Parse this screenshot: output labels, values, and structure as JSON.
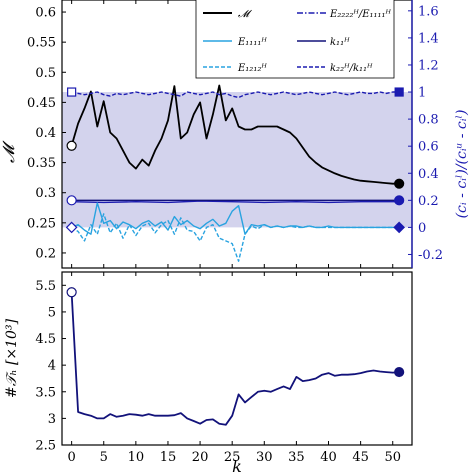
{
  "chart_data": [
    {
      "type": "line",
      "ylabel": "𝓜",
      "ylabel_right": "(cᵢ - cᵢˡ)/(cᵢᵘ - cᵢˡ)",
      "xlim": [
        -1.5,
        53
      ],
      "ylim": [
        0.175,
        0.62
      ],
      "ylim_right": [
        -0.3,
        1.68
      ],
      "xticks": [
        "0",
        "5",
        "10",
        "15",
        "20",
        "25",
        "30",
        "35",
        "40",
        "45",
        "50"
      ],
      "yticks": [
        "0.2",
        "0.25",
        "0.3",
        "0.35",
        "0.4",
        "0.45",
        "0.5",
        "0.55",
        "0.6"
      ],
      "yticks_right": [
        "-0.2",
        "0",
        "0.2",
        "0.4",
        "0.6",
        "0.8",
        "1",
        "1.2",
        "1.4",
        "1.6"
      ],
      "shaded_band": [
        0,
        1
      ],
      "legend_position": "top-right",
      "series": [
        {
          "name": "𝓜",
          "axis": "left",
          "color": "#000000",
          "x": [
            0,
            1,
            2,
            3,
            4,
            5,
            6,
            7,
            8,
            9,
            10,
            11,
            12,
            13,
            14,
            15,
            16,
            17,
            18,
            19,
            20,
            21,
            22,
            23,
            24,
            25,
            26,
            27,
            28,
            29,
            30,
            31,
            32,
            33,
            34,
            35,
            36,
            37,
            38,
            39,
            40,
            41,
            42,
            43,
            44,
            45,
            46,
            47,
            48,
            49,
            50,
            51
          ],
          "values": [
            0.378,
            0.415,
            0.44,
            0.468,
            0.41,
            0.452,
            0.4,
            0.39,
            0.37,
            0.35,
            0.34,
            0.355,
            0.345,
            0.37,
            0.39,
            0.42,
            0.477,
            0.39,
            0.4,
            0.43,
            0.45,
            0.39,
            0.43,
            0.478,
            0.42,
            0.44,
            0.41,
            0.405,
            0.405,
            0.41,
            0.41,
            0.41,
            0.41,
            0.405,
            0.4,
            0.39,
            0.375,
            0.36,
            0.35,
            0.342,
            0.337,
            0.332,
            0.328,
            0.325,
            0.322,
            0.32,
            0.319,
            0.318,
            0.317,
            0.316,
            0.315,
            0.315
          ]
        },
        {
          "name": "E₂₂₂₂ᴴ/E₁₁₁₁ᴴ",
          "axis": "right",
          "color": "#1b1bb0",
          "x": [
            0,
            5,
            10,
            15,
            20,
            25,
            30,
            35,
            40,
            45,
            51
          ],
          "values": [
            0.19,
            0.185,
            0.19,
            0.185,
            0.195,
            0.19,
            0.185,
            0.19,
            0.185,
            0.19,
            0.19
          ]
        },
        {
          "name": "E₁₁₁₁ᴴ",
          "axis": "right",
          "color": "#29a3e0",
          "x": [
            0,
            1,
            2,
            3,
            4,
            5,
            6,
            7,
            8,
            9,
            10,
            11,
            12,
            13,
            14,
            15,
            16,
            17,
            18,
            19,
            20,
            21,
            22,
            23,
            24,
            25,
            26,
            27,
            28,
            29,
            30,
            31,
            32,
            33,
            34,
            35,
            36,
            37,
            38,
            39,
            40,
            41,
            42,
            43,
            44,
            45,
            46,
            47,
            48,
            49,
            50,
            51
          ],
          "values": [
            0,
            0.02,
            -0.02,
            -0.05,
            0.18,
            0.03,
            0.05,
            -0.01,
            0.04,
            0.02,
            -0.01,
            0.03,
            0.05,
            0.01,
            0.04,
            -0.02,
            0.08,
            0.02,
            0.05,
            0.01,
            -0.01,
            0.03,
            0.06,
            0.01,
            0.03,
            0.12,
            0.16,
            -0.05,
            0.02,
            0.01,
            0.02,
            0,
            0.01,
            0,
            0.01,
            0.01,
            0,
            0.01,
            0,
            0,
            0.01,
            0,
            0,
            0,
            0,
            0,
            0,
            0,
            0,
            0,
            0,
            0
          ]
        },
        {
          "name": "k₁₁ᴴ",
          "axis": "right",
          "color": "#12127a",
          "x": [
            0,
            51
          ],
          "values": [
            0.2,
            0.2
          ]
        },
        {
          "name": "E₁₂₁₂ᴴ",
          "axis": "right",
          "color": "#29a3e0",
          "dash": true,
          "x": [
            0,
            1,
            2,
            3,
            4,
            5,
            6,
            7,
            8,
            9,
            10,
            11,
            12,
            13,
            14,
            15,
            16,
            17,
            18,
            19,
            20,
            21,
            22,
            23,
            24,
            25,
            26,
            27,
            28,
            29,
            30,
            31,
            32,
            33,
            34,
            35,
            36,
            37,
            38,
            39,
            40,
            41,
            42,
            43,
            44,
            45,
            46,
            47,
            48,
            49,
            50,
            51
          ],
          "values": [
            0,
            -0.03,
            -0.1,
            0.02,
            -0.05,
            0.1,
            -0.04,
            0.03,
            -0.08,
            0.02,
            -0.06,
            0.01,
            0.03,
            -0.04,
            0.02,
            0.05,
            -0.05,
            0.07,
            -0.02,
            -0.03,
            -0.1,
            0,
            0.02,
            -0.08,
            -0.1,
            -0.12,
            -0.25,
            -0.05,
            0.01,
            -0.01,
            0.02,
            0,
            0.01,
            0,
            0.01,
            0,
            0,
            0.01,
            0,
            0,
            0,
            0,
            0,
            0,
            0,
            0,
            0,
            0,
            0,
            0,
            0,
            0
          ]
        },
        {
          "name": "k₂₂ᴴ/k₁₁ᴴ",
          "axis": "right",
          "color": "#1b1bb0",
          "dash": true,
          "x": [
            0,
            1,
            2,
            3,
            4,
            5,
            6,
            7,
            8,
            9,
            10,
            11,
            12,
            13,
            14,
            15,
            16,
            17,
            18,
            19,
            20,
            21,
            22,
            23,
            24,
            25,
            26,
            27,
            28,
            29,
            30,
            31,
            32,
            33,
            34,
            35,
            36,
            37,
            38,
            39,
            40,
            41,
            42,
            43,
            44,
            45,
            46,
            47,
            48,
            49,
            50,
            51
          ],
          "values": [
            1,
            0.99,
            0.98,
            0.99,
            1.0,
            0.98,
            0.97,
            0.99,
            0.98,
            0.99,
            1.0,
            0.99,
            0.98,
            0.99,
            1.0,
            0.99,
            0.98,
            0.97,
            1.0,
            0.99,
            0.98,
            0.99,
            1.0,
            0.98,
            0.99,
            0.97,
            0.96,
            0.98,
            0.99,
            1.0,
            0.99,
            0.98,
            0.99,
            1.0,
            0.99,
            0.98,
            0.99,
            1.0,
            0.99,
            0.98,
            0.99,
            1.0,
            0.99,
            0.98,
            0.99,
            1.0,
            0.99,
            0.99,
            1.0,
            0.99,
            1.0,
            1.0
          ]
        }
      ],
      "markers": [
        {
          "axis": "left",
          "x": 0,
          "y": 0.378,
          "filled": false,
          "shape": "circle",
          "color": "#000000"
        },
        {
          "axis": "left",
          "x": 51,
          "y": 0.315,
          "filled": true,
          "shape": "circle",
          "color": "#000000"
        },
        {
          "axis": "right",
          "x": 0,
          "y": 1,
          "filled": false,
          "shape": "square",
          "color": "#1b1bb0"
        },
        {
          "axis": "right",
          "x": 51,
          "y": 1,
          "filled": true,
          "shape": "square",
          "color": "#1b1bb0"
        },
        {
          "axis": "right",
          "x": 0,
          "y": 0.2,
          "filled": false,
          "shape": "circle",
          "color": "#1b1bb0"
        },
        {
          "axis": "right",
          "x": 51,
          "y": 0.2,
          "filled": true,
          "shape": "circle",
          "color": "#1b1bb0"
        },
        {
          "axis": "right",
          "x": 0,
          "y": 0,
          "filled": false,
          "shape": "diamond",
          "color": "#1b1bb0"
        },
        {
          "axis": "right",
          "x": 51,
          "y": 0,
          "filled": true,
          "shape": "diamond",
          "color": "#1b1bb0"
        }
      ]
    },
    {
      "type": "line",
      "ylabel": "#𝒯ₕ [×10³]",
      "xlabel": "k",
      "xlim": [
        -1.5,
        53
      ],
      "ylim": [
        2.5,
        5.75
      ],
      "xticks": [
        "0",
        "5",
        "10",
        "15",
        "20",
        "25",
        "30",
        "35",
        "40",
        "45",
        "50"
      ],
      "yticks": [
        "2.5",
        "3",
        "3.5",
        "4",
        "4.5",
        "5",
        "5.5"
      ],
      "series": [
        {
          "name": "#𝒯ₕ",
          "color": "#12127a",
          "x": [
            0,
            1,
            2,
            3,
            4,
            5,
            6,
            7,
            8,
            9,
            10,
            11,
            12,
            13,
            14,
            15,
            16,
            17,
            18,
            19,
            20,
            21,
            22,
            23,
            24,
            25,
            26,
            27,
            28,
            29,
            30,
            31,
            32,
            33,
            34,
            35,
            36,
            37,
            38,
            39,
            40,
            41,
            42,
            43,
            44,
            45,
            46,
            47,
            48,
            49,
            50,
            51
          ],
          "values": [
            5.37,
            3.12,
            3.08,
            3.05,
            3.0,
            3.0,
            3.08,
            3.03,
            3.05,
            3.08,
            3.07,
            3.05,
            3.08,
            3.05,
            3.05,
            3.05,
            3.06,
            3.1,
            3.0,
            2.95,
            2.9,
            2.97,
            2.98,
            2.9,
            2.88,
            3.05,
            3.45,
            3.3,
            3.4,
            3.5,
            3.52,
            3.5,
            3.55,
            3.6,
            3.55,
            3.78,
            3.7,
            3.72,
            3.75,
            3.82,
            3.85,
            3.8,
            3.82,
            3.82,
            3.83,
            3.85,
            3.88,
            3.9,
            3.88,
            3.87,
            3.86,
            3.87
          ]
        }
      ],
      "markers": [
        {
          "x": 0,
          "y": 5.37,
          "filled": false,
          "shape": "circle",
          "color": "#12127a"
        },
        {
          "x": 51,
          "y": 3.87,
          "filled": true,
          "shape": "circle",
          "color": "#12127a"
        }
      ]
    }
  ]
}
